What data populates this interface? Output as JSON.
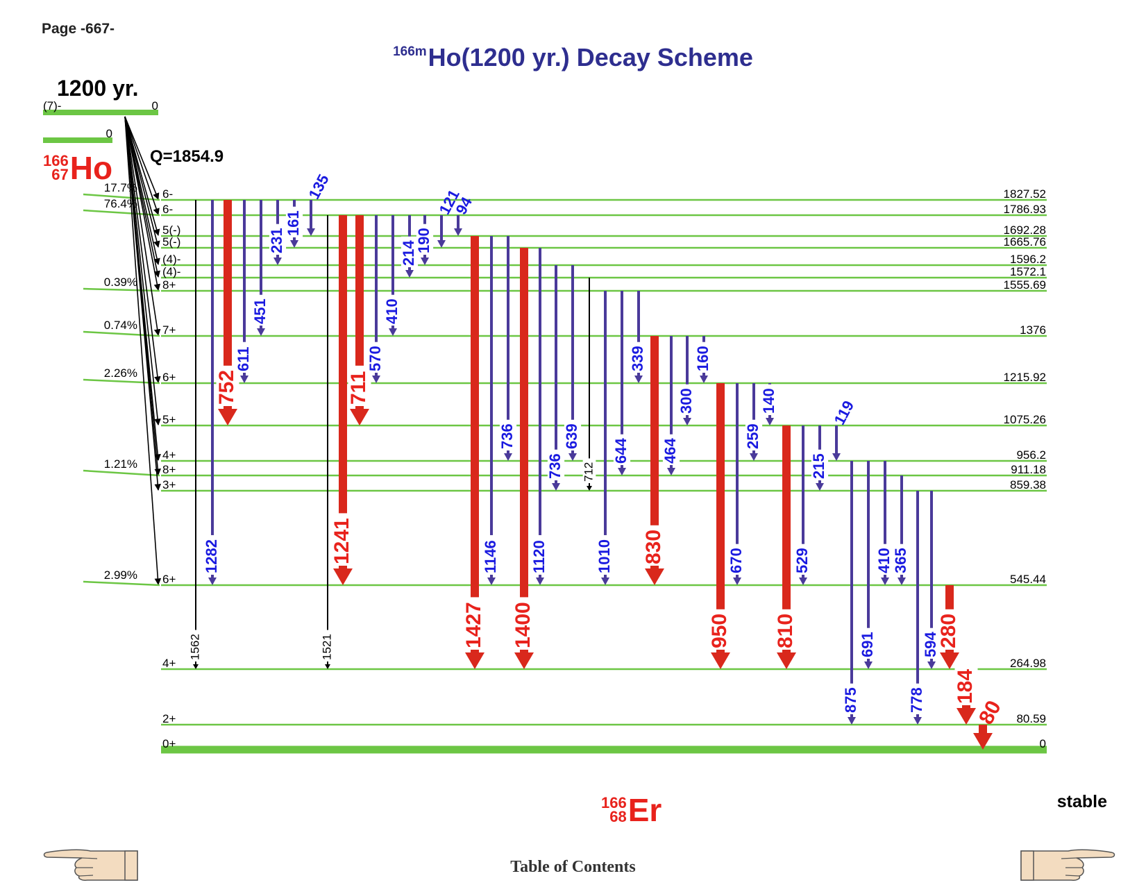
{
  "header": {
    "page_number": "Page -667-",
    "title_mass": "166m",
    "title_text": "Ho(1200 yr.) Decay Scheme"
  },
  "parent": {
    "half_life": "1200 yr.",
    "spin": "(7)-",
    "energy": "0",
    "ground_energy": "0",
    "mass": "166",
    "atomic_number": "67",
    "symbol": "Ho",
    "q_value": "Q=1854.9"
  },
  "daughter": {
    "mass": "166",
    "atomic_number": "68",
    "symbol": "Er",
    "stability": "stable"
  },
  "levels": [
    {
      "energy": "1827.52",
      "spin": "6-",
      "feed": "17.7%"
    },
    {
      "energy": "1786.93",
      "spin": "6-",
      "feed": "76.4%"
    },
    {
      "energy": "1692.28",
      "spin": "5(-)",
      "feed": ""
    },
    {
      "energy": "1665.76",
      "spin": "5(-)",
      "feed": ""
    },
    {
      "energy": "1596.2",
      "spin": "(4)-",
      "feed": ""
    },
    {
      "energy": "1572.1",
      "spin": "(4)-",
      "feed": ""
    },
    {
      "energy": "1555.69",
      "spin": "8+",
      "feed": "0.39%"
    },
    {
      "energy": "1376",
      "spin": "7+",
      "feed": "0.74%"
    },
    {
      "energy": "1215.92",
      "spin": "6+",
      "feed": "2.26%"
    },
    {
      "energy": "1075.26",
      "spin": "5+",
      "feed": ""
    },
    {
      "energy": "956.2",
      "spin": "4+",
      "feed": ""
    },
    {
      "energy": "911.18",
      "spin": "8+",
      "feed": "1.21%"
    },
    {
      "energy": "859.38",
      "spin": "3+",
      "feed": ""
    },
    {
      "energy": "545.44",
      "spin": "6+",
      "feed": "2.99%"
    },
    {
      "energy": "264.98",
      "spin": "4+",
      "feed": ""
    },
    {
      "energy": "80.59",
      "spin": "2+",
      "feed": ""
    },
    {
      "energy": "0",
      "spin": "0+",
      "feed": ""
    }
  ],
  "transitions": [
    {
      "label": "1562",
      "from": 0,
      "to": 14,
      "style": "thin"
    },
    {
      "label": "1282",
      "from": 0,
      "to": 13,
      "style": "weak"
    },
    {
      "label": "752",
      "from": 0,
      "to": 9,
      "style": "strong"
    },
    {
      "label": "611",
      "from": 0,
      "to": 8,
      "style": "weak"
    },
    {
      "label": "451",
      "from": 0,
      "to": 7,
      "style": "weak"
    },
    {
      "label": "231",
      "from": 0,
      "to": 4,
      "style": "weak"
    },
    {
      "label": "161",
      "from": 0,
      "to": 3,
      "style": "weak"
    },
    {
      "label": "135",
      "from": 0,
      "to": 2,
      "style": "weak"
    },
    {
      "label": "1521",
      "from": 1,
      "to": 14,
      "style": "thin"
    },
    {
      "label": "1241",
      "from": 1,
      "to": 13,
      "style": "strong"
    },
    {
      "label": "711",
      "from": 1,
      "to": 9,
      "style": "strong"
    },
    {
      "label": "570",
      "from": 1,
      "to": 8,
      "style": "weak"
    },
    {
      "label": "410",
      "from": 1,
      "to": 7,
      "style": "weak"
    },
    {
      "label": "214",
      "from": 1,
      "to": 5,
      "style": "weak"
    },
    {
      "label": "190",
      "from": 1,
      "to": 4,
      "style": "weak"
    },
    {
      "label": "121",
      "from": 1,
      "to": 3,
      "style": "weak"
    },
    {
      "label": "94",
      "from": 1,
      "to": 2,
      "style": "weak"
    },
    {
      "label": "1427",
      "from": 2,
      "to": 14,
      "style": "strong"
    },
    {
      "label": "1146",
      "from": 2,
      "to": 13,
      "style": "weak"
    },
    {
      "label": "736",
      "from": 2,
      "to": 10,
      "style": "weak"
    },
    {
      "label": "1400",
      "from": 3,
      "to": 14,
      "style": "strong"
    },
    {
      "label": "1120",
      "from": 3,
      "to": 13,
      "style": "weak"
    },
    {
      "label": "736",
      "from": 4,
      "to": 12,
      "style": "weak"
    },
    {
      "label": "639",
      "from": 4,
      "to": 10,
      "style": "weak"
    },
    {
      "label": "712",
      "from": 5,
      "to": 12,
      "style": "thin"
    },
    {
      "label": "1010",
      "from": 6,
      "to": 13,
      "style": "weak"
    },
    {
      "label": "644",
      "from": 6,
      "to": 11,
      "style": "weak"
    },
    {
      "label": "339",
      "from": 6,
      "to": 8,
      "style": "weak"
    },
    {
      "label": "830",
      "from": 7,
      "to": 13,
      "style": "strong"
    },
    {
      "label": "464",
      "from": 7,
      "to": 11,
      "style": "weak"
    },
    {
      "label": "300",
      "from": 7,
      "to": 9,
      "style": "weak"
    },
    {
      "label": "160",
      "from": 7,
      "to": 8,
      "style": "weak"
    },
    {
      "label": "950",
      "from": 8,
      "to": 14,
      "style": "strong"
    },
    {
      "label": "670",
      "from": 8,
      "to": 13,
      "style": "weak"
    },
    {
      "label": "259",
      "from": 8,
      "to": 10,
      "style": "weak"
    },
    {
      "label": "140",
      "from": 8,
      "to": 9,
      "style": "weak"
    },
    {
      "label": "810",
      "from": 9,
      "to": 14,
      "style": "strong"
    },
    {
      "label": "529",
      "from": 9,
      "to": 13,
      "style": "weak"
    },
    {
      "label": "215",
      "from": 9,
      "to": 12,
      "style": "weak"
    },
    {
      "label": "119",
      "from": 9,
      "to": 10,
      "style": "weak"
    },
    {
      "label": "875",
      "from": 10,
      "to": 15,
      "style": "weak"
    },
    {
      "label": "691",
      "from": 10,
      "to": 14,
      "style": "weak"
    },
    {
      "label": "410",
      "from": 10,
      "to": 13,
      "style": "weak"
    },
    {
      "label": "365",
      "from": 11,
      "to": 13,
      "style": "weak"
    },
    {
      "label": "778",
      "from": 12,
      "to": 15,
      "style": "weak"
    },
    {
      "label": "594",
      "from": 12,
      "to": 14,
      "style": "weak"
    },
    {
      "label": "280",
      "from": 13,
      "to": 14,
      "style": "strong"
    },
    {
      "label": "184",
      "from": 14,
      "to": 15,
      "style": "strong"
    },
    {
      "label": "80",
      "from": 15,
      "to": 16,
      "style": "strong"
    }
  ],
  "colors": {
    "level_line": "#6cc644",
    "weak_transition": "#4a3a9a",
    "strong_transition": "#d9281c",
    "thin_transition": "#000000",
    "weak_label": "#1a1ae0",
    "strong_label": "#e8221c"
  },
  "footer": {
    "link_text": "Table of Contents",
    "left_icon": "pointing-hand-left-icon",
    "right_icon": "pointing-hand-right-icon"
  }
}
